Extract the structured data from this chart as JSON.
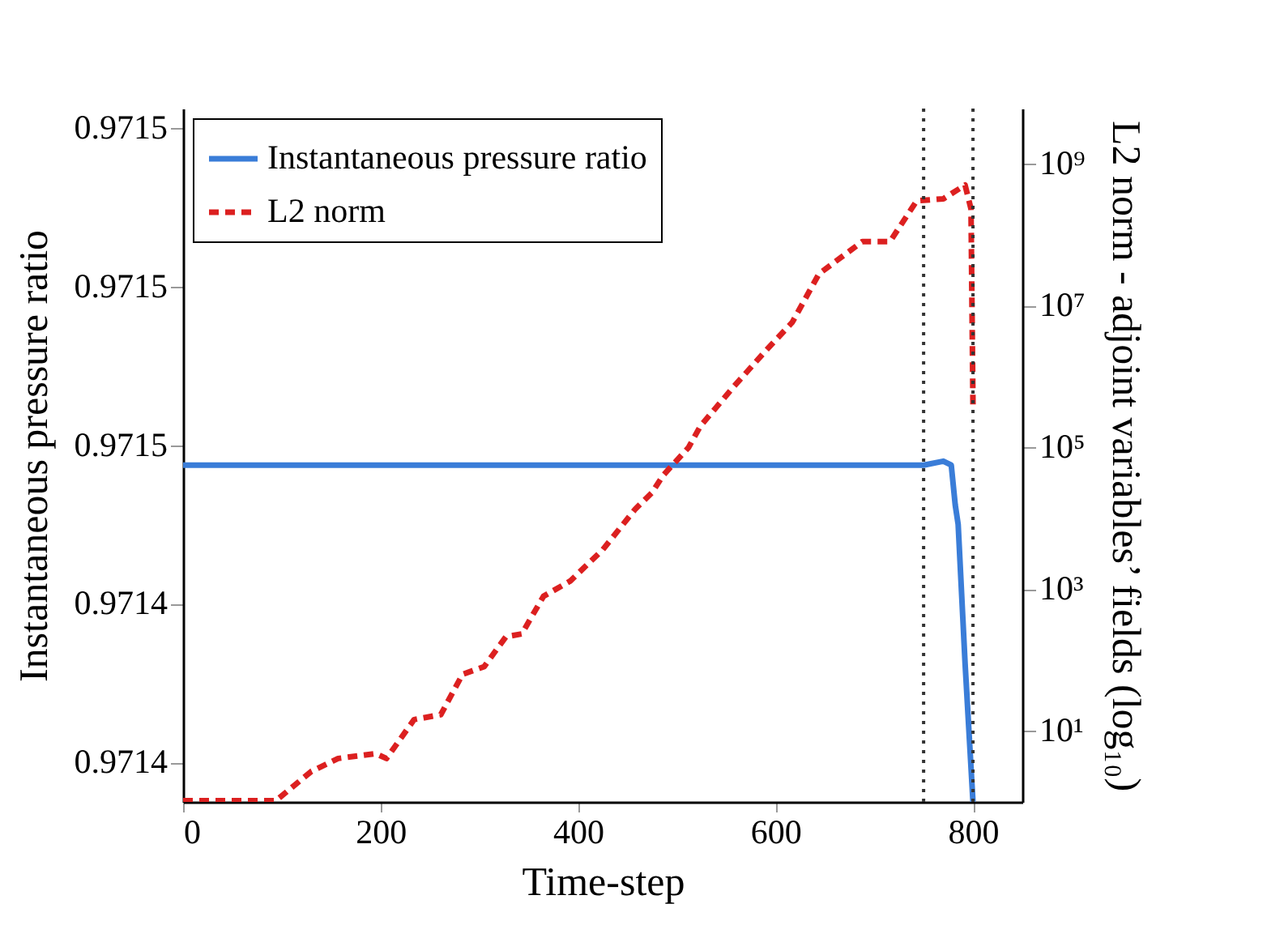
{
  "chart_data": {
    "type": "line",
    "xlabel": "Time-step",
    "ylabel": "Instantaneous pressure ratio",
    "y2label": "L2 norm - adjoint variables’ fields (log₁₀)",
    "xlim": [
      0,
      850
    ],
    "xticks": [
      0,
      200,
      400,
      600,
      800
    ],
    "ylim": [
      0.97137,
      0.971545
    ],
    "yticks": [
      {
        "value": 0.97138,
        "label": "0.9714"
      },
      {
        "value": 0.97142,
        "label": "0.9714"
      },
      {
        "value": 0.97146,
        "label": "0.9715"
      },
      {
        "value": 0.9715,
        "label": "0.9715"
      },
      {
        "value": 0.97154,
        "label": "0.9715"
      }
    ],
    "y2lim": [
      1,
      6000000000
    ],
    "y2ticks": [
      {
        "value": 10,
        "label": "10¹"
      },
      {
        "value": 1000,
        "label": "10³"
      },
      {
        "value": 100000,
        "label": "10⁵"
      },
      {
        "value": 10000000,
        "label": "10⁷"
      },
      {
        "value": 1000000000,
        "label": "10⁹"
      }
    ],
    "log": "y2",
    "grid": false,
    "legend": "top left",
    "marker": "none",
    "series": [
      {
        "name": "Instantaneous pressure ratio",
        "color": "#3a7dd8",
        "line_style": "solid",
        "x": [
          0,
          750,
          770,
          778,
          782,
          785,
          792,
          800
        ],
        "values": [
          0.971455,
          0.971455,
          0.971456,
          0.971455,
          0.971445,
          0.97144,
          0.971405,
          0.97137
        ]
      },
      {
        "name": "L2 norm",
        "color": "#dc2020",
        "line_style": "dashed",
        "axis": "y2",
        "x": [
          0,
          94,
          130,
          157,
          195,
          206,
          234,
          261,
          283,
          305,
          327,
          343,
          365,
          392,
          425,
          458,
          475,
          486,
          512,
          524,
          557,
          590,
          617,
          644,
          688,
          716,
          743,
          770,
          792,
          798,
          800
        ],
        "values": [
          1.04,
          1.04,
          2.7,
          4.1,
          4.8,
          4.1,
          14.5,
          17,
          63,
          81,
          214,
          234,
          794,
          1300,
          3600,
          13500,
          23000,
          40000,
          100000,
          200000,
          700000,
          2300000,
          5800000,
          28000000,
          80000000,
          80000000,
          300000000,
          320000000,
          500000000,
          230000000,
          400000
        ]
      }
    ],
    "ref_lines": [
      {
        "axis": "x",
        "value": 750,
        "color": "#333333",
        "line_style": "dotted"
      },
      {
        "axis": "x",
        "value": 800,
        "color": "#333333",
        "line_style": "dotted"
      }
    ]
  }
}
